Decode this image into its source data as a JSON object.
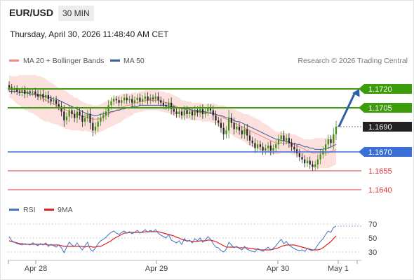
{
  "header": {
    "pair": "EUR/USD",
    "timeframe": "30 MIN",
    "datetime": "Thursday, April 30, 2026 11:48:40 AM CET"
  },
  "legend": {
    "items": [
      {
        "label": "MA 20 + Bollinger Bands",
        "color": "#f08a82"
      },
      {
        "label": "MA 50",
        "color": "#3a5aa0"
      }
    ],
    "copyright": "Research © 2026 Trading Central"
  },
  "rsi_legend": {
    "items": [
      {
        "label": "RSI",
        "color": "#4472c4"
      },
      {
        "label": "9MA",
        "color": "#e02020"
      }
    ]
  },
  "chart_data": [
    {
      "type": "candlestick",
      "ylim": [
        1.163,
        1.173
      ],
      "x_labels": [
        "Apr 28",
        "Apr 29",
        "Apr 30",
        "May 1"
      ],
      "levels": [
        {
          "value": 1.172,
          "label": "1.1720",
          "color": "#3c9c0a",
          "kind": "resistance"
        },
        {
          "value": 1.1705,
          "label": "1.1705",
          "color": "#3c9c0a",
          "kind": "resistance"
        },
        {
          "value": 1.169,
          "label": "1.1690",
          "color": "#222222",
          "kind": "last"
        },
        {
          "value": 1.167,
          "label": "1.1670",
          "color": "#3a6fd8",
          "kind": "pivot"
        },
        {
          "value": 1.1655,
          "label": "1.1655",
          "color": "#e03030",
          "kind": "support"
        },
        {
          "value": 1.164,
          "label": "1.1640",
          "color": "#e03030",
          "kind": "support"
        }
      ],
      "close": [
        1.1721,
        1.1719,
        1.172,
        1.1718,
        1.1717,
        1.1719,
        1.1716,
        1.1718,
        1.1717,
        1.1718,
        1.1716,
        1.1714,
        1.1716,
        1.1713,
        1.1715,
        1.1712,
        1.171,
        1.1711,
        1.1708,
        1.1706,
        1.1702,
        1.1695,
        1.1698,
        1.1703,
        1.17,
        1.1697,
        1.1702,
        1.1699,
        1.1694,
        1.1697,
        1.17,
        1.1693,
        1.1687,
        1.169,
        1.1694,
        1.1697,
        1.1699,
        1.1702,
        1.1707,
        1.171,
        1.1712,
        1.1711,
        1.1709,
        1.1711,
        1.1713,
        1.1711,
        1.1712,
        1.1709,
        1.1711,
        1.1713,
        1.171,
        1.1712,
        1.1714,
        1.1711,
        1.1713,
        1.1712,
        1.1714,
        1.1711,
        1.1709,
        1.1707,
        1.1706,
        1.1709,
        1.1704,
        1.1702,
        1.17,
        1.1702,
        1.1699,
        1.1703,
        1.17,
        1.1702,
        1.1699,
        1.1703,
        1.1701,
        1.1704,
        1.17,
        1.1702,
        1.1705,
        1.1703,
        1.1699,
        1.1695,
        1.1693,
        1.1689,
        1.1684,
        1.1687,
        1.1697,
        1.1693,
        1.1688,
        1.169,
        1.1687,
        1.1684,
        1.1688,
        1.1683,
        1.1679,
        1.1677,
        1.1673,
        1.1676,
        1.1674,
        1.1671,
        1.1673,
        1.1675,
        1.1671,
        1.1673,
        1.1676,
        1.168,
        1.1683,
        1.1679,
        1.1681,
        1.1677,
        1.1674,
        1.1672,
        1.1669,
        1.1666,
        1.1664,
        1.1661,
        1.1663,
        1.166,
        1.1658,
        1.166,
        1.1664,
        1.1668,
        1.1671,
        1.1676,
        1.168,
        1.1677,
        1.1684,
        1.169
      ],
      "ma20": [
        1.1722,
        1.1721,
        1.172,
        1.1719,
        1.1719,
        1.1718,
        1.1717,
        1.1717,
        1.1716,
        1.1716,
        1.1715,
        1.1714,
        1.1713,
        1.1712,
        1.1711,
        1.171,
        1.1709,
        1.1708,
        1.1707,
        1.1706,
        1.1705,
        1.1704,
        1.1703,
        1.1702,
        1.1701,
        1.17,
        1.17,
        1.1699,
        1.1698,
        1.1698,
        1.1697,
        1.1697,
        1.1696,
        1.1696,
        1.1696,
        1.1697,
        1.1698,
        1.1699,
        1.17,
        1.1701,
        1.1702,
        1.1703,
        1.1704,
        1.1705,
        1.1706,
        1.1707,
        1.1707,
        1.1708,
        1.1709,
        1.1709,
        1.171,
        1.171,
        1.1711,
        1.1711,
        1.1711,
        1.1711,
        1.1711,
        1.1711,
        1.171,
        1.171,
        1.1709,
        1.1709,
        1.1708,
        1.1707,
        1.1706,
        1.1705,
        1.1704,
        1.1704,
        1.1703,
        1.1703,
        1.1702,
        1.1702,
        1.1702,
        1.1702,
        1.1701,
        1.1701,
        1.1701,
        1.1701,
        1.1701,
        1.17,
        1.1699,
        1.1698,
        1.1697,
        1.1696,
        1.1695,
        1.1694,
        1.1693,
        1.1692,
        1.1691,
        1.169,
        1.1689,
        1.1688,
        1.1687,
        1.1686,
        1.1685,
        1.1684,
        1.1683,
        1.1682,
        1.1681,
        1.168,
        1.1679,
        1.1678,
        1.1677,
        1.1677,
        1.1677,
        1.1677,
        1.1677,
        1.1677,
        1.1676,
        1.1676,
        1.1675,
        1.1674,
        1.1673,
        1.1672,
        1.1671,
        1.167,
        1.1669,
        1.1669,
        1.1669,
        1.1669,
        1.1669,
        1.1669,
        1.1669,
        1.167,
        1.1671,
        1.1672
      ],
      "ma50": [
        1.1718,
        1.1718,
        1.1718,
        1.1718,
        1.1717,
        1.1717,
        1.1717,
        1.1717,
        1.1716,
        1.1716,
        1.1716,
        1.1715,
        1.1715,
        1.1714,
        1.1714,
        1.1713,
        1.1713,
        1.1712,
        1.1712,
        1.1711,
        1.171,
        1.1709,
        1.1708,
        1.1707,
        1.1706,
        1.1705,
        1.1704,
        1.1703,
        1.1702,
        1.1701,
        1.17,
        1.17,
        1.1699,
        1.1699,
        1.1699,
        1.17,
        1.17,
        1.1701,
        1.1701,
        1.1702,
        1.1702,
        1.1703,
        1.1703,
        1.1704,
        1.1704,
        1.1705,
        1.1705,
        1.1706,
        1.1706,
        1.1706,
        1.1707,
        1.1707,
        1.1707,
        1.1707,
        1.1707,
        1.1707,
        1.1707,
        1.1707,
        1.1707,
        1.1707,
        1.1707,
        1.1706,
        1.1706,
        1.1706,
        1.1705,
        1.1705,
        1.1705,
        1.1704,
        1.1704,
        1.1704,
        1.1703,
        1.1703,
        1.1703,
        1.1702,
        1.1702,
        1.1702,
        1.1701,
        1.1701,
        1.17,
        1.17,
        1.1699,
        1.1699,
        1.1698,
        1.1697,
        1.1697,
        1.1696,
        1.1695,
        1.1694,
        1.1694,
        1.1693,
        1.1692,
        1.1691,
        1.169,
        1.1689,
        1.1688,
        1.1687,
        1.1686,
        1.1685,
        1.1684,
        1.1683,
        1.1682,
        1.1681,
        1.168,
        1.168,
        1.1679,
        1.1679,
        1.1678,
        1.1678,
        1.1677,
        1.1677,
        1.1676,
        1.1676,
        1.1675,
        1.1674,
        1.1674,
        1.1673,
        1.1673,
        1.1672,
        1.1672,
        1.1672,
        1.1672,
        1.1673,
        1.1673,
        1.1674,
        1.1675,
        1.1676
      ],
      "bb_width": [
        0.0009,
        0.0009,
        0.001,
        0.0011,
        0.0012,
        0.0013,
        0.0014,
        0.0014,
        0.0015,
        0.0015,
        0.0016,
        0.0016,
        0.0017,
        0.0017,
        0.0017,
        0.0016,
        0.0016,
        0.0016,
        0.0015,
        0.0015,
        0.0015,
        0.0015,
        0.0015,
        0.0014,
        0.0014,
        0.0013,
        0.0013,
        0.0012,
        0.0012,
        0.0011,
        0.0011,
        0.0011,
        0.0011,
        0.0011,
        0.0011,
        0.0011,
        0.0011,
        0.0011,
        0.0011,
        0.0011,
        0.0011,
        0.0011,
        0.0011,
        0.0011,
        0.001,
        0.001,
        0.0009,
        0.0009,
        0.0008,
        0.0008,
        0.0008,
        0.0008,
        0.0008,
        0.0008,
        0.0008,
        0.0008,
        0.0008,
        0.0008,
        0.0008,
        0.0008,
        0.0008,
        0.0008,
        0.0008,
        0.0008,
        0.0008,
        0.0008,
        0.0007,
        0.0007,
        0.0007,
        0.0007,
        0.0007,
        0.0007,
        0.0007,
        0.0007,
        0.0007,
        0.0007,
        0.0007,
        0.0007,
        0.0008,
        0.0008,
        0.0008,
        0.0009,
        0.001,
        0.001,
        0.001,
        0.001,
        0.0011,
        0.0011,
        0.0011,
        0.0011,
        0.0011,
        0.0012,
        0.0012,
        0.0012,
        0.0012,
        0.0012,
        0.0012,
        0.0011,
        0.0011,
        0.0011,
        0.001,
        0.001,
        0.0009,
        0.0009,
        0.0008,
        0.0008,
        0.0008,
        0.0008,
        0.0008,
        0.0008,
        0.0008,
        0.0008,
        0.0008,
        0.0008,
        0.0009,
        0.001,
        0.0011,
        0.0012,
        0.0012,
        0.0012,
        0.0012,
        0.0012,
        0.0012,
        0.0012,
        0.0012,
        0.0012
      ],
      "projection": {
        "from": 1.169,
        "to": 1.172
      }
    },
    {
      "type": "line",
      "indicator": "RSI",
      "ylim": [
        20,
        80
      ],
      "ticks": [
        70,
        50,
        30
      ],
      "rsi": [
        52,
        46,
        44,
        42,
        41,
        40,
        42,
        41,
        40,
        43,
        41,
        39,
        42,
        40,
        43,
        38,
        41,
        39,
        37,
        40,
        36,
        29,
        37,
        44,
        40,
        38,
        43,
        37,
        33,
        39,
        44,
        34,
        31,
        36,
        42,
        46,
        48,
        51,
        55,
        58,
        60,
        57,
        55,
        58,
        60,
        57,
        59,
        56,
        58,
        61,
        57,
        59,
        62,
        58,
        61,
        59,
        62,
        57,
        54,
        52,
        50,
        55,
        47,
        45,
        43,
        46,
        41,
        49,
        45,
        47,
        43,
        49,
        46,
        50,
        44,
        47,
        52,
        48,
        42,
        37,
        36,
        32,
        30,
        34,
        44,
        40,
        36,
        38,
        35,
        33,
        38,
        34,
        32,
        31,
        30,
        35,
        33,
        31,
        34,
        37,
        33,
        35,
        39,
        44,
        48,
        42,
        45,
        40,
        37,
        35,
        33,
        32,
        33,
        31,
        35,
        33,
        32,
        34,
        40,
        45,
        49,
        55,
        60,
        58,
        65,
        67
      ],
      "rsi_ma": [
        46,
        45,
        44,
        43,
        42,
        42,
        41,
        41,
        41,
        41,
        41,
        41,
        41,
        41,
        41,
        40,
        40,
        40,
        40,
        40,
        39,
        38,
        38,
        38,
        38,
        38,
        38,
        38,
        38,
        37,
        38,
        38,
        37,
        37,
        38,
        38,
        40,
        42,
        44,
        46,
        49,
        51,
        53,
        55,
        57,
        57,
        58,
        58,
        58,
        58,
        58,
        58,
        59,
        59,
        59,
        59,
        59,
        59,
        58,
        57,
        56,
        55,
        54,
        53,
        51,
        50,
        48,
        47,
        46,
        46,
        45,
        45,
        45,
        46,
        46,
        46,
        47,
        47,
        46,
        45,
        43,
        41,
        39,
        37,
        37,
        37,
        37,
        37,
        36,
        36,
        36,
        36,
        35,
        35,
        34,
        34,
        33,
        33,
        33,
        33,
        33,
        34,
        35,
        36,
        38,
        39,
        40,
        40,
        40,
        40,
        39,
        38,
        37,
        36,
        35,
        34,
        33,
        33,
        33,
        34,
        36,
        39,
        42,
        45,
        49,
        53
      ]
    }
  ]
}
